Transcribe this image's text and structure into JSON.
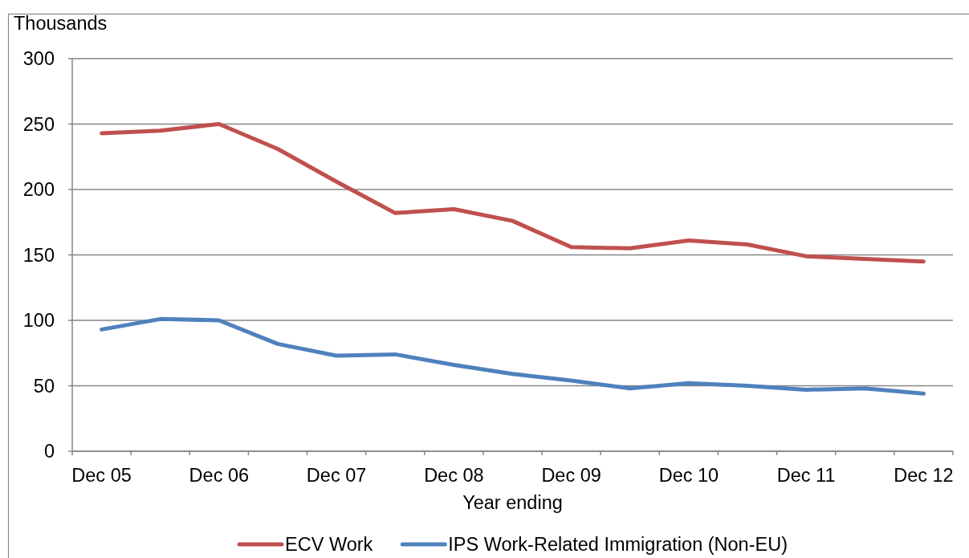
{
  "chart_data": {
    "type": "line",
    "ylabel": "Thousands",
    "xlabel": "Year ending",
    "categories": [
      "Dec 05",
      null,
      "Dec 06",
      null,
      "Dec 07",
      null,
      "Dec 08",
      null,
      "Dec 09",
      null,
      "Dec 10",
      null,
      "Dec 11",
      null,
      "Dec 12"
    ],
    "series": [
      {
        "name": "ECV Work",
        "color": "#c0504d",
        "values": [
          243,
          245,
          250,
          231,
          206,
          182,
          185,
          176,
          156,
          155,
          161,
          158,
          149,
          147,
          145
        ]
      },
      {
        "name": "IPS Work-Related Immigration (Non-EU)",
        "color": "#4f81bd",
        "values": [
          93,
          101,
          100,
          82,
          73,
          74,
          66,
          59,
          54,
          48,
          52,
          50,
          47,
          48,
          44
        ]
      }
    ],
    "ylim": [
      0,
      300
    ],
    "yticks": [
      0,
      50,
      100,
      150,
      200,
      250,
      300
    ],
    "grid": "y",
    "legend": "bottom"
  }
}
